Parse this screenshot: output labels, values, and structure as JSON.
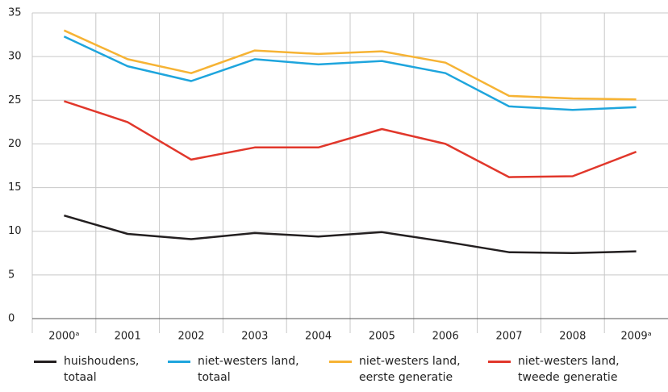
{
  "chart_data": {
    "type": "line",
    "categories": [
      "2000ᵃ",
      "2001",
      "2002",
      "2003",
      "2004",
      "2005",
      "2006",
      "2007",
      "2008",
      "2009ᵃ"
    ],
    "series": [
      {
        "name": "huishoudens, totaal",
        "color": "#231f20",
        "values": [
          11.8,
          9.7,
          9.1,
          9.8,
          9.4,
          9.9,
          8.8,
          7.6,
          7.5,
          7.7
        ]
      },
      {
        "name": "niet-westers land, totaal",
        "color": "#1ea5dd",
        "values": [
          32.3,
          28.9,
          27.2,
          29.7,
          29.1,
          29.5,
          28.1,
          24.3,
          23.9,
          24.2
        ]
      },
      {
        "name": "niet-westers land, eerste generatie",
        "color": "#f6b334",
        "values": [
          33.0,
          29.7,
          28.1,
          30.7,
          30.3,
          30.6,
          29.3,
          25.5,
          25.2,
          25.1
        ]
      },
      {
        "name": "niet-westers land, tweede generatie",
        "color": "#e1372b",
        "values": [
          24.9,
          22.5,
          18.2,
          19.6,
          19.6,
          21.7,
          20.0,
          16.2,
          16.3,
          19.1
        ]
      }
    ],
    "ylim": [
      0,
      35
    ],
    "yticks": [
      0,
      5,
      10,
      15,
      20,
      25,
      30,
      35
    ],
    "grid": true
  }
}
